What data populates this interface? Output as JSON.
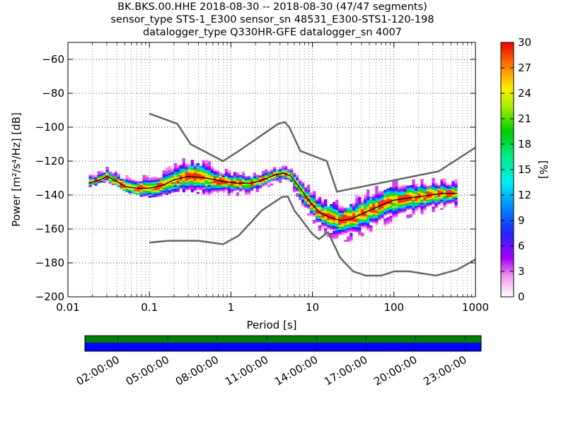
{
  "title": {
    "line1": "BK.BKS.00.HHE   2018-08-30 -- 2018-08-30  (47/47 segments)",
    "line2": "sensor_type STS-1_E300 sensor_sn 48531_E300-STS1-120-198",
    "line3": "datalogger_type Q330HR-GFE datalogger_sn 4007"
  },
  "chart_data": {
    "type": "heatmap",
    "xlabel": "Period [s]",
    "ylabel": "Power [m²/s⁴/Hz] [dB]",
    "x_scale": "log",
    "xlim": [
      0.01,
      1000
    ],
    "ylim": [
      -200,
      -50
    ],
    "x_ticks": [
      "0.01",
      "0.1",
      "1",
      "10",
      "100",
      "1000"
    ],
    "y_ticks": [
      "−60",
      "−80",
      "−100",
      "−120",
      "−140",
      "−160",
      "−180",
      "−200"
    ],
    "y_tick_values": [
      -60,
      -80,
      -100,
      -120,
      -140,
      -160,
      -180,
      -200
    ],
    "colorbar": {
      "label": "[%]",
      "ticks": [
        "0",
        "3",
        "6",
        "9",
        "12",
        "15",
        "18",
        "21",
        "24",
        "27",
        "30"
      ],
      "range": [
        0,
        30
      ]
    },
    "grid": true,
    "noise_models": {
      "high": [
        [
          0.1,
          -92
        ],
        [
          0.22,
          -98
        ],
        [
          0.32,
          -110
        ],
        [
          0.8,
          -120
        ],
        [
          1.25,
          -114
        ],
        [
          3.8,
          -98
        ],
        [
          4.6,
          -97
        ],
        [
          5.2,
          -100
        ],
        [
          7.1,
          -114
        ],
        [
          15,
          -120
        ],
        [
          20,
          -138
        ],
        [
          354,
          -126
        ],
        [
          1000,
          -112
        ]
      ],
      "low": [
        [
          0.1,
          -168
        ],
        [
          0.17,
          -167
        ],
        [
          0.4,
          -167
        ],
        [
          0.8,
          -169
        ],
        [
          1.24,
          -164
        ],
        [
          2.4,
          -149
        ],
        [
          4.3,
          -141
        ],
        [
          5,
          -141
        ],
        [
          6,
          -149
        ],
        [
          10,
          -163
        ],
        [
          12,
          -166
        ],
        [
          15.6,
          -162
        ],
        [
          21.9,
          -177
        ],
        [
          31.6,
          -185
        ],
        [
          45,
          -187.5
        ],
        [
          70,
          -187.5
        ],
        [
          101,
          -185
        ],
        [
          154,
          -185
        ],
        [
          328,
          -187.5
        ],
        [
          600,
          -184
        ],
        [
          1000,
          -178
        ]
      ]
    },
    "median_psd": [
      [
        0.018,
        -133
      ],
      [
        0.025,
        -131
      ],
      [
        0.03,
        -129
      ],
      [
        0.04,
        -132
      ],
      [
        0.05,
        -135
      ],
      [
        0.07,
        -136
      ],
      [
        0.1,
        -136
      ],
      [
        0.15,
        -134
      ],
      [
        0.2,
        -131
      ],
      [
        0.3,
        -129
      ],
      [
        0.5,
        -130
      ],
      [
        0.8,
        -132
      ],
      [
        1.2,
        -133
      ],
      [
        1.8,
        -133
      ],
      [
        2.5,
        -131
      ],
      [
        3.5,
        -128
      ],
      [
        4.5,
        -127
      ],
      [
        5.5,
        -129
      ],
      [
        7,
        -136
      ],
      [
        9,
        -143
      ],
      [
        12,
        -150
      ],
      [
        16,
        -153
      ],
      [
        22,
        -155
      ],
      [
        30,
        -154
      ],
      [
        45,
        -150
      ],
      [
        70,
        -146
      ],
      [
        100,
        -143
      ],
      [
        200,
        -141
      ],
      [
        400,
        -139
      ],
      [
        600,
        -139
      ]
    ],
    "psd_spread": [
      [
        0.018,
        3
      ],
      [
        0.05,
        4
      ],
      [
        0.1,
        5
      ],
      [
        0.2,
        6
      ],
      [
        0.35,
        8
      ],
      [
        0.8,
        5
      ],
      [
        1.5,
        4
      ],
      [
        3,
        3
      ],
      [
        5,
        3
      ],
      [
        8,
        5
      ],
      [
        15,
        7
      ],
      [
        30,
        8
      ],
      [
        60,
        8
      ],
      [
        150,
        7
      ],
      [
        600,
        5
      ]
    ],
    "timeline": {
      "tick_labels": [
        "02:00:00",
        "05:00:00",
        "08:00:00",
        "11:00:00",
        "14:00:00",
        "17:00:00",
        "20:00:00",
        "23:00:00"
      ],
      "bar_top_color": "#008000",
      "bar_bottom_color": "#0000ff"
    }
  }
}
